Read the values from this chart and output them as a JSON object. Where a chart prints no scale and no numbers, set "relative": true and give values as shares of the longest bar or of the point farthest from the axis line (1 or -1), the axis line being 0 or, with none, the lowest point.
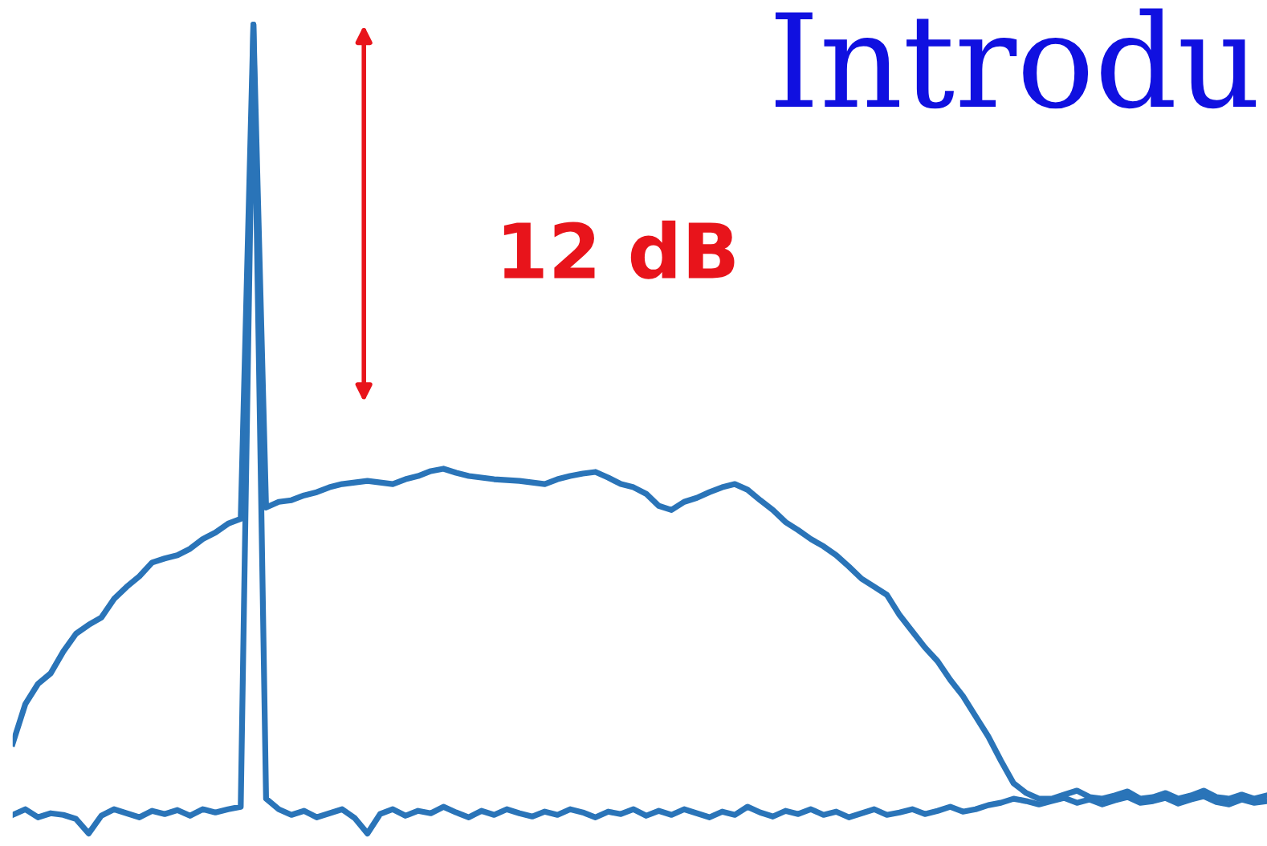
{
  "chart_data": {
    "type": "line",
    "title": "Introdu",
    "relative": true,
    "line_style": "solid",
    "annotations": [
      "12 dB"
    ],
    "categories": [
      null,
      null,
      null,
      null,
      null,
      null,
      null,
      null,
      null,
      null,
      null,
      null,
      null,
      null,
      null,
      null,
      null,
      null,
      null,
      null,
      null,
      null,
      null,
      null,
      null,
      null,
      null,
      null,
      null,
      null,
      null,
      null,
      null,
      null,
      null,
      null,
      null,
      null,
      null,
      null,
      null,
      null,
      null,
      null,
      null,
      null,
      null,
      null,
      null,
      null,
      null,
      null,
      null,
      null,
      null,
      null,
      null,
      null,
      null,
      null,
      null,
      null,
      null,
      null,
      null,
      null,
      null,
      null,
      null,
      null,
      null,
      null,
      null,
      null,
      null,
      null,
      null,
      null,
      null,
      null,
      null,
      null,
      null,
      null,
      null,
      null,
      null,
      null,
      null,
      null,
      null,
      null,
      null,
      null,
      null,
      null,
      null,
      null,
      null,
      null
    ],
    "series": [
      {
        "color": "#2a74b8",
        "values": [
          0.111,
          0.16,
          0.185,
          0.198,
          0.225,
          0.247,
          0.258,
          0.267,
          0.29,
          0.305,
          0.318,
          0.335,
          0.34,
          0.344,
          0.352,
          0.364,
          0.372,
          0.383,
          0.389,
          1.0,
          0.403,
          0.41,
          0.412,
          0.418,
          0.422,
          0.428,
          0.432,
          0.434,
          0.436,
          0.434,
          0.432,
          0.438,
          0.442,
          0.448,
          0.451,
          0.446,
          0.442,
          0.44,
          0.438,
          0.437,
          0.436,
          0.434,
          0.432,
          0.438,
          0.442,
          0.445,
          0.447,
          0.44,
          0.432,
          0.428,
          0.42,
          0.405,
          0.4,
          0.41,
          0.415,
          0.422,
          0.428,
          0.432,
          0.425,
          0.412,
          0.4,
          0.385,
          0.375,
          0.364,
          0.355,
          0.344,
          0.33,
          0.315,
          0.305,
          0.295,
          0.27,
          0.25,
          0.23,
          0.213,
          0.19,
          0.17,
          0.145,
          0.12,
          0.09,
          0.062,
          0.05,
          0.043,
          0.043,
          0.048,
          0.053,
          0.045,
          0.043,
          0.047,
          0.052,
          0.043,
          0.045,
          0.05,
          0.043,
          0.047,
          0.053,
          0.045,
          0.043,
          0.048,
          0.043,
          0.047
        ]
      },
      {
        "color": "#2a74b8",
        "values": [
          0.023,
          0.03,
          0.02,
          0.025,
          0.023,
          0.018,
          0.0,
          0.022,
          0.03,
          0.025,
          0.02,
          0.028,
          0.024,
          0.029,
          0.022,
          0.03,
          0.026,
          0.03,
          0.033,
          1.0,
          0.043,
          0.03,
          0.023,
          0.028,
          0.02,
          0.025,
          0.03,
          0.019,
          0.0,
          0.024,
          0.03,
          0.022,
          0.028,
          0.025,
          0.033,
          0.026,
          0.02,
          0.028,
          0.023,
          0.03,
          0.025,
          0.021,
          0.027,
          0.023,
          0.03,
          0.026,
          0.02,
          0.027,
          0.024,
          0.03,
          0.022,
          0.028,
          0.023,
          0.03,
          0.025,
          0.02,
          0.027,
          0.023,
          0.033,
          0.026,
          0.021,
          0.028,
          0.024,
          0.03,
          0.023,
          0.027,
          0.02,
          0.025,
          0.03,
          0.023,
          0.026,
          0.03,
          0.024,
          0.028,
          0.033,
          0.027,
          0.03,
          0.035,
          0.038,
          0.043,
          0.04,
          0.036,
          0.04,
          0.044,
          0.038,
          0.042,
          0.036,
          0.041,
          0.045,
          0.038,
          0.04,
          0.044,
          0.037,
          0.042,
          0.046,
          0.039,
          0.036,
          0.042,
          0.038,
          0.04
        ]
      }
    ]
  }
}
